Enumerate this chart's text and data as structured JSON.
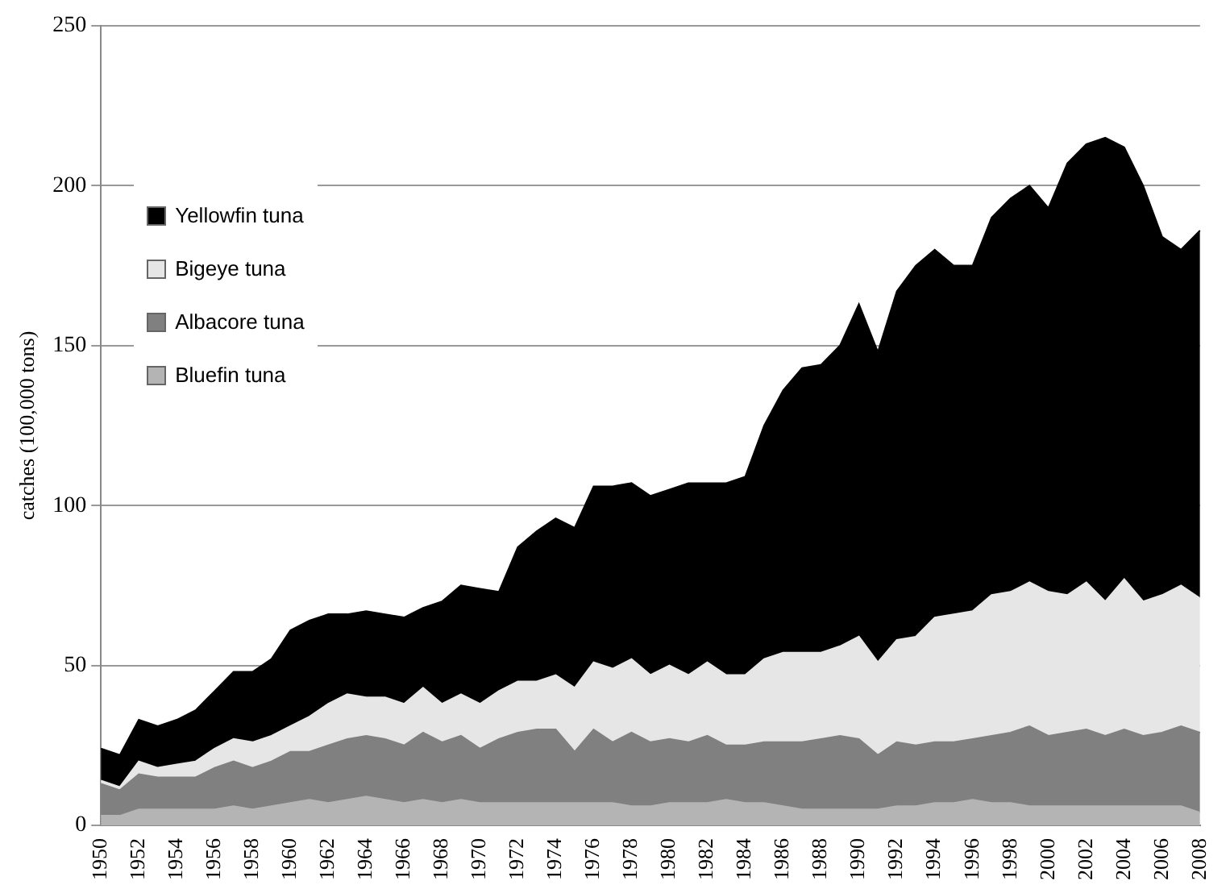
{
  "chart_data": {
    "type": "area",
    "stacked": true,
    "ylabel": "catches (100,000 tons)",
    "categories": [
      "1950",
      null,
      "1952",
      null,
      "1954",
      null,
      "1956",
      null,
      "1958",
      null,
      "1960",
      null,
      "1962",
      null,
      "1964",
      null,
      "1966",
      null,
      "1968",
      null,
      "1970",
      null,
      "1972",
      null,
      "1974",
      null,
      "1976",
      null,
      "1978",
      null,
      "1980",
      null,
      "1982",
      null,
      "1984",
      null,
      "1986",
      null,
      "1988",
      null,
      "1990",
      null,
      "1992",
      null,
      "1994",
      null,
      "1996",
      null,
      "1998",
      null,
      "2000",
      null,
      "2002",
      null,
      "2004",
      null,
      "2006",
      null,
      "2008"
    ],
    "series": [
      {
        "name": "Bluefin tuna",
        "color": "#b4b4b4",
        "values": [
          3,
          3,
          5,
          5,
          5,
          5,
          5,
          6,
          5,
          6,
          7,
          8,
          7,
          8,
          9,
          8,
          7,
          8,
          7,
          8,
          7,
          7,
          7,
          7,
          7,
          7,
          7,
          7,
          6,
          6,
          7,
          7,
          7,
          8,
          7,
          7,
          6,
          5,
          5,
          5,
          5,
          5,
          6,
          6,
          7,
          7,
          8,
          7,
          7,
          6,
          6,
          6,
          6,
          6,
          6,
          6,
          6,
          6,
          4
        ]
      },
      {
        "name": "Albacore tuna",
        "color": "#808080",
        "values": [
          10,
          8,
          11,
          10,
          10,
          10,
          13,
          14,
          13,
          14,
          16,
          15,
          18,
          19,
          19,
          19,
          18,
          21,
          19,
          20,
          17,
          20,
          22,
          23,
          23,
          16,
          23,
          19,
          23,
          20,
          20,
          19,
          21,
          17,
          18,
          19,
          20,
          21,
          22,
          23,
          22,
          17,
          20,
          19,
          19,
          19,
          19,
          21,
          22,
          25,
          22,
          23,
          24,
          22,
          24,
          22,
          23,
          25,
          25
        ]
      },
      {
        "name": "Bigeye tuna",
        "color": "#e6e6e6",
        "values": [
          1,
          1,
          4,
          3,
          4,
          5,
          6,
          7,
          8,
          8,
          8,
          11,
          13,
          14,
          12,
          13,
          13,
          14,
          12,
          13,
          14,
          15,
          16,
          15,
          17,
          20,
          21,
          23,
          23,
          21,
          23,
          21,
          23,
          22,
          22,
          26,
          28,
          28,
          27,
          28,
          32,
          29,
          32,
          34,
          39,
          40,
          40,
          44,
          44,
          45,
          45,
          43,
          46,
          42,
          47,
          42,
          43,
          44,
          42
        ]
      },
      {
        "name": "Yellowfin tuna",
        "color": "#000000",
        "values": [
          10,
          10,
          13,
          13,
          14,
          16,
          18,
          21,
          22,
          24,
          30,
          30,
          28,
          25,
          27,
          26,
          27,
          25,
          32,
          34,
          36,
          31,
          42,
          47,
          49,
          50,
          55,
          57,
          55,
          56,
          55,
          60,
          56,
          60,
          62,
          73,
          82,
          89,
          90,
          94,
          104,
          97,
          109,
          116,
          115,
          109,
          108,
          118,
          123,
          124,
          120,
          135,
          137,
          145,
          135,
          130,
          112,
          105,
          115
        ]
      }
    ],
    "ylim": [
      0,
      250
    ],
    "yticks": [
      0,
      50,
      100,
      150,
      200,
      250
    ],
    "grid": "y",
    "legend": "left"
  }
}
